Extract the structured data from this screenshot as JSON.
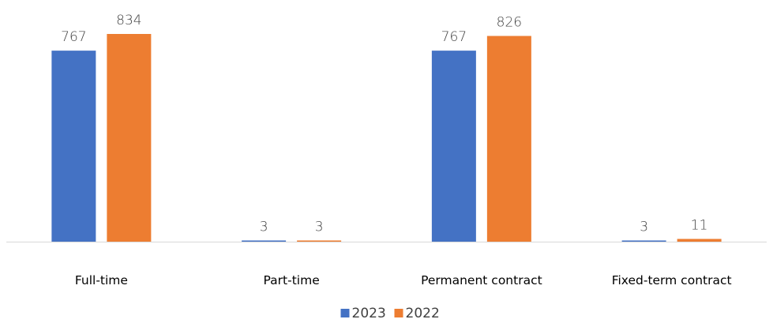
{
  "chart_data": {
    "type": "bar",
    "categories": [
      "Full-time",
      "Part-time",
      "Permanent contract",
      "Fixed-term contract"
    ],
    "series": [
      {
        "name": "2023",
        "values": [
          767,
          3,
          767,
          3
        ],
        "color": "#4472C4"
      },
      {
        "name": "2022",
        "values": [
          834,
          3,
          826,
          11
        ],
        "color": "#ED7D31"
      }
    ],
    "title": "",
    "xlabel": "",
    "ylabel": "",
    "ylim": [
      0,
      834
    ],
    "grid": false,
    "legend": "bottom-center",
    "axis_color": "#D9D9D9"
  }
}
